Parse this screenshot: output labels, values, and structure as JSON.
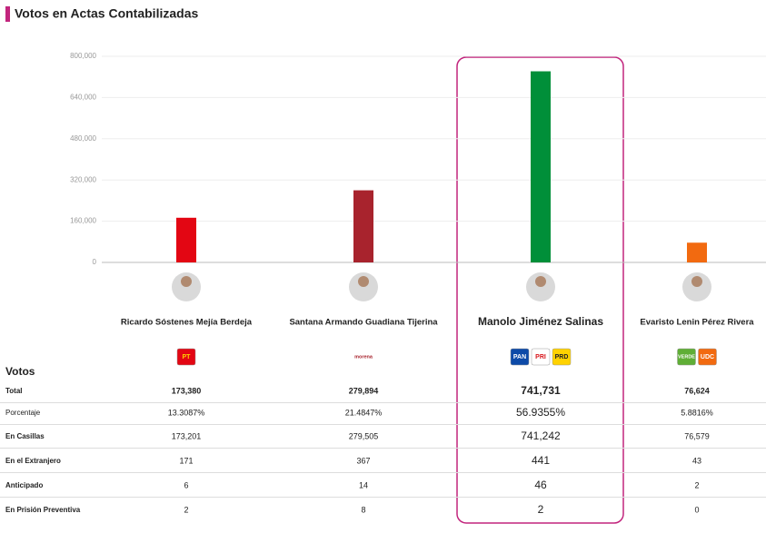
{
  "chart_data": {
    "type": "bar",
    "title": "Votos en Actas Contabilizadas",
    "categories": [
      "Ricardo Sóstenes Mejía Berdeja",
      "Santana Armando Guadiana Tijerina",
      "Manolo Jiménez Salinas",
      "Evaristo Lenin Pérez Rivera"
    ],
    "values": [
      173380,
      279894,
      741731,
      76624
    ],
    "colors": [
      "#e30613",
      "#a8232d",
      "#008f39",
      "#f26a10"
    ],
    "ylim": [
      0,
      800000
    ],
    "yticks": [
      0,
      {
        "value": 160000,
        "label": "160,000"
      },
      {
        "value": 320000,
        "label": "320,000"
      },
      {
        "value": 480000,
        "label": "480,000"
      },
      {
        "value": 640000,
        "label": "640,000"
      },
      {
        "value": 800000,
        "label": "800,000"
      }
    ],
    "grid": true
  },
  "parties": [
    [
      "PT"
    ],
    [
      "morena"
    ],
    [
      "PAN",
      "PRI",
      "PRD"
    ],
    [
      "VERDE",
      "UDC"
    ]
  ],
  "table": {
    "title": "Votos",
    "rows": [
      {
        "label": "Total",
        "values": [
          "173,380",
          "279,894",
          "741,731",
          "76,624"
        ]
      },
      {
        "label": "Porcentaje",
        "values": [
          "13.3087%",
          "21.4847%",
          "56.9355%",
          "5.8816%"
        ]
      },
      {
        "label": "En Casillas",
        "values": [
          "173,201",
          "279,505",
          "741,242",
          "76,579"
        ]
      },
      {
        "label": "En el Extranjero",
        "values": [
          "171",
          "367",
          "441",
          "43"
        ]
      },
      {
        "label": "Anticipado",
        "values": [
          "6",
          "14",
          "46",
          "2"
        ]
      },
      {
        "label": "En Prisión Preventiva",
        "values": [
          "2",
          "8",
          "2",
          "0"
        ]
      }
    ]
  }
}
